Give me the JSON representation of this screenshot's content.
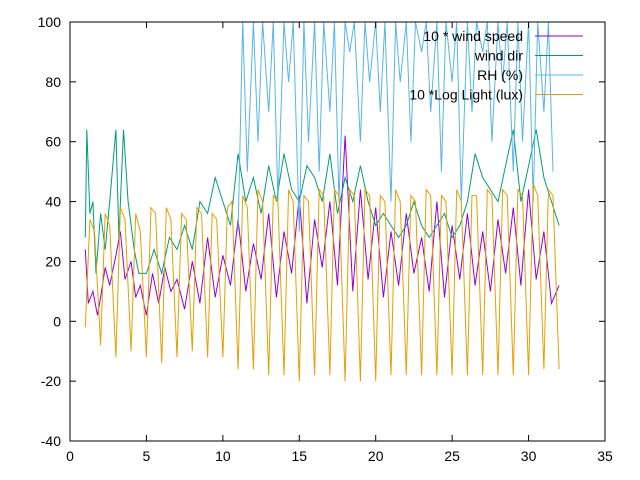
{
  "chart_data": {
    "type": "line",
    "title": "",
    "xlabel": "",
    "ylabel": "",
    "xlim": [
      0,
      35
    ],
    "ylim": [
      -40,
      100
    ],
    "xticks": [
      0,
      5,
      10,
      15,
      20,
      25,
      30,
      35
    ],
    "xtick_labels": [
      "0",
      "5",
      "10",
      "15",
      "20",
      "25",
      "30",
      "35"
    ],
    "yticks": [
      -40,
      -20,
      0,
      20,
      40,
      60,
      80,
      100
    ],
    "ytick_labels": [
      "-40",
      "-20",
      "0",
      "20",
      "40",
      "60",
      "80",
      "100"
    ],
    "grid": false,
    "legend_position": "top-right",
    "series": [
      {
        "name": "10 * wind speed",
        "color": "#9400d3",
        "x": [
          1.0,
          1.2,
          1.5,
          1.8,
          2.0,
          2.3,
          2.6,
          3.0,
          3.3,
          3.6,
          4.0,
          4.3,
          4.6,
          5.0,
          5.4,
          5.8,
          6.2,
          6.6,
          7.0,
          7.5,
          8.0,
          8.5,
          9.0,
          9.5,
          10.0,
          10.5,
          11.0,
          11.5,
          12.0,
          12.5,
          13.0,
          13.5,
          14.0,
          14.5,
          15.0,
          15.5,
          16.0,
          16.5,
          17.0,
          17.5,
          18.0,
          18.5,
          19.0,
          19.5,
          20.0,
          20.5,
          21.0,
          21.5,
          22.0,
          22.5,
          23.0,
          23.5,
          24.0,
          24.5,
          25.0,
          25.5,
          26.0,
          26.5,
          27.0,
          27.5,
          28.0,
          28.5,
          29.0,
          29.5,
          30.0,
          30.5,
          31.0,
          31.5,
          32.0
        ],
        "y": [
          24,
          6,
          10,
          2,
          8,
          18,
          12,
          22,
          30,
          14,
          20,
          8,
          12,
          2,
          16,
          6,
          18,
          10,
          14,
          4,
          20,
          6,
          28,
          8,
          22,
          12,
          34,
          10,
          26,
          14,
          36,
          8,
          30,
          16,
          42,
          6,
          34,
          18,
          40,
          12,
          62,
          10,
          44,
          14,
          38,
          8,
          30,
          12,
          36,
          16,
          28,
          10,
          40,
          8,
          32,
          14,
          36,
          12,
          30,
          10,
          34,
          16,
          38,
          12,
          44,
          14,
          30,
          6,
          12
        ]
      },
      {
        "name": "wind dir",
        "color": "#009e73",
        "x": [
          1.0,
          1.1,
          1.3,
          1.5,
          1.7,
          2.0,
          2.3,
          2.6,
          3.0,
          3.2,
          3.5,
          3.8,
          4.2,
          4.5,
          5.0,
          5.5,
          6.0,
          6.5,
          7.0,
          7.5,
          8.0,
          8.5,
          9.0,
          9.5,
          10.0,
          10.5,
          11.0,
          11.5,
          12.0,
          12.5,
          13.0,
          13.5,
          14.0,
          14.5,
          15.0,
          15.5,
          16.0,
          16.5,
          17.0,
          17.5,
          18.0,
          18.5,
          19.0,
          19.5,
          20.0,
          20.5,
          21.0,
          21.5,
          22.0,
          22.5,
          23.0,
          23.5,
          24.0,
          24.5,
          25.0,
          25.5,
          26.0,
          26.5,
          27.0,
          27.5,
          28.0,
          28.5,
          29.0,
          29.5,
          30.0,
          30.5,
          31.0,
          31.5,
          32.0
        ],
        "y": [
          28,
          64,
          36,
          40,
          16,
          36,
          24,
          40,
          64,
          28,
          64,
          40,
          24,
          16,
          16,
          24,
          16,
          28,
          24,
          32,
          24,
          40,
          36,
          48,
          40,
          32,
          56,
          40,
          48,
          36,
          52,
          40,
          56,
          44,
          40,
          52,
          48,
          40,
          56,
          36,
          48,
          40,
          52,
          40,
          32,
          36,
          32,
          28,
          32,
          40,
          32,
          28,
          32,
          36,
          28,
          32,
          40,
          56,
          48,
          44,
          40,
          52,
          64,
          40,
          52,
          64,
          48,
          40,
          32
        ]
      },
      {
        "name": "RH (%)",
        "color": "#56b4e9",
        "x": [
          11.0,
          11.3,
          11.6,
          12.0,
          12.3,
          12.6,
          13.0,
          13.3,
          13.6,
          14.0,
          14.3,
          14.6,
          15.0,
          15.3,
          15.6,
          16.0,
          16.3,
          16.6,
          17.0,
          17.3,
          17.6,
          18.0,
          18.3,
          18.6,
          19.0,
          19.3,
          19.6,
          20.0,
          20.3,
          20.6,
          21.0,
          21.3,
          21.6,
          22.0,
          22.3,
          22.6,
          23.0,
          23.3,
          23.6,
          24.0,
          24.3,
          24.6,
          25.0,
          25.3,
          25.6,
          26.0,
          26.3,
          26.6,
          27.0,
          27.3,
          27.6,
          28.0,
          28.3,
          28.6,
          29.0,
          29.3,
          29.6,
          30.0,
          30.3,
          30.6,
          31.0,
          31.3,
          31.6
        ],
        "y": [
          30,
          100,
          50,
          100,
          60,
          100,
          70,
          100,
          40,
          100,
          80,
          100,
          30,
          100,
          60,
          100,
          50,
          100,
          70,
          100,
          40,
          100,
          90,
          100,
          60,
          100,
          80,
          100,
          70,
          100,
          40,
          100,
          80,
          100,
          60,
          100,
          90,
          100,
          70,
          100,
          50,
          100,
          80,
          100,
          40,
          100,
          70,
          100,
          90,
          100,
          60,
          100,
          80,
          100,
          50,
          100,
          60,
          100,
          40,
          100,
          70,
          100,
          50
        ]
      },
      {
        "name": "10 *Log Light (lux)",
        "color": "#e69f00",
        "x": [
          1.0,
          1.3,
          1.6,
          2.0,
          2.3,
          2.6,
          3.0,
          3.3,
          3.6,
          4.0,
          4.3,
          4.6,
          5.0,
          5.3,
          5.6,
          6.0,
          6.3,
          6.6,
          7.0,
          7.3,
          7.6,
          8.0,
          8.3,
          8.6,
          9.0,
          9.3,
          9.6,
          10.0,
          10.3,
          10.6,
          11.0,
          11.3,
          11.6,
          12.0,
          12.3,
          12.6,
          13.0,
          13.3,
          13.6,
          14.0,
          14.3,
          14.6,
          15.0,
          15.3,
          15.6,
          16.0,
          16.3,
          16.6,
          17.0,
          17.3,
          17.6,
          18.0,
          18.3,
          18.6,
          19.0,
          19.3,
          19.6,
          20.0,
          20.3,
          20.6,
          21.0,
          21.3,
          21.6,
          22.0,
          22.3,
          22.6,
          23.0,
          23.3,
          23.6,
          24.0,
          24.3,
          24.6,
          25.0,
          25.3,
          25.6,
          26.0,
          26.3,
          26.6,
          27.0,
          27.3,
          27.6,
          28.0,
          28.3,
          28.6,
          29.0,
          29.3,
          29.6,
          30.0,
          30.3,
          30.6,
          31.0,
          31.3,
          31.6,
          32.0
        ],
        "y": [
          -2,
          34,
          30,
          -8,
          36,
          32,
          -12,
          38,
          34,
          -10,
          36,
          30,
          -12,
          38,
          36,
          -14,
          38,
          34,
          -12,
          36,
          34,
          -10,
          38,
          36,
          -12,
          36,
          34,
          -12,
          38,
          40,
          -16,
          42,
          38,
          -16,
          44,
          40,
          -18,
          42,
          40,
          -18,
          44,
          40,
          -20,
          42,
          40,
          -18,
          44,
          42,
          -18,
          44,
          42,
          -20,
          44,
          42,
          -20,
          44,
          42,
          -20,
          42,
          40,
          -18,
          44,
          40,
          -18,
          42,
          40,
          -18,
          44,
          42,
          -18,
          42,
          40,
          -18,
          44,
          40,
          -18,
          42,
          42,
          -18,
          44,
          42,
          -18,
          44,
          42,
          -18,
          44,
          42,
          -18,
          46,
          42,
          -16,
          44,
          42,
          -16
        ]
      }
    ]
  }
}
